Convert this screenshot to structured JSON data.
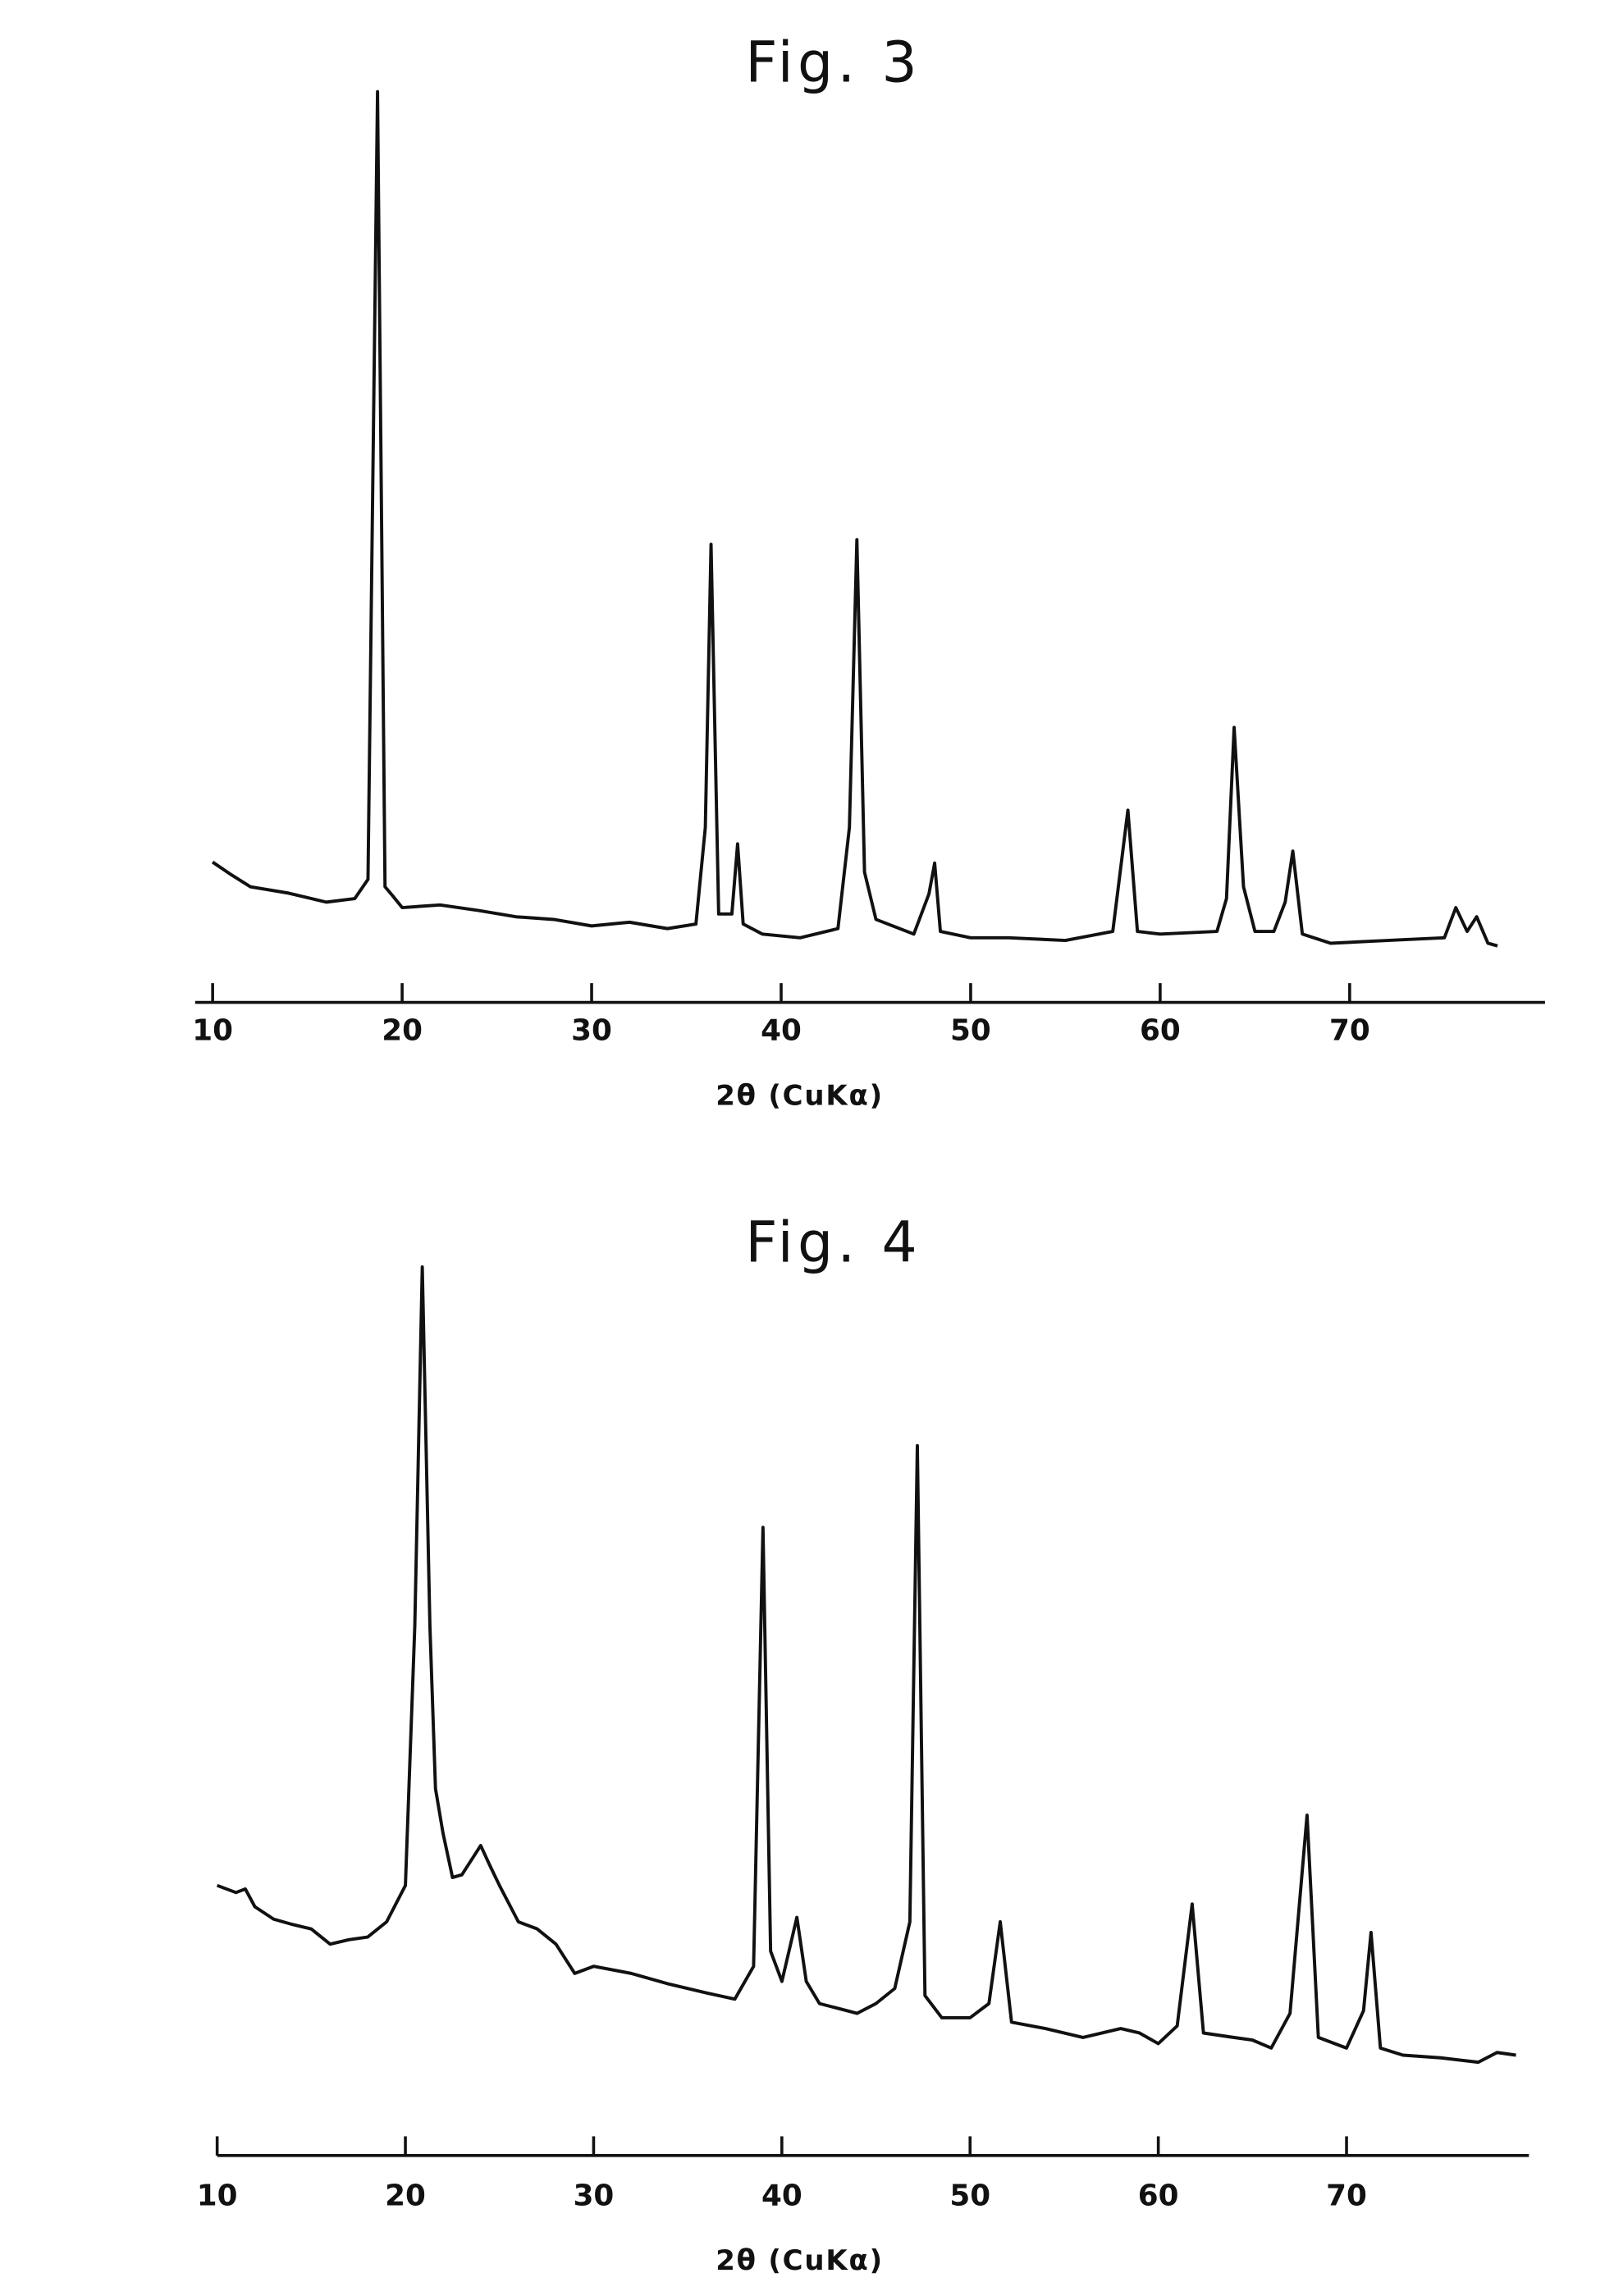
{
  "chart_data": [
    {
      "type": "line",
      "title": "Fig. 3",
      "xlabel": "2θ (CuKα)",
      "color": "#111111",
      "xlim": [
        9,
        80
      ],
      "ylim": [
        0,
        100
      ],
      "xticks": [
        10,
        20,
        30,
        40,
        50,
        60,
        70
      ],
      "x": [
        10,
        11,
        12,
        14,
        16,
        17.5,
        18.2,
        18.7,
        19.1,
        19.5,
        20,
        22,
        24,
        26,
        28,
        30,
        32,
        34,
        35.5,
        36.0,
        36.3,
        36.7,
        37.4,
        37.7,
        38.0,
        39,
        41,
        43,
        43.6,
        44.0,
        44.4,
        45,
        47,
        47.8,
        48.1,
        48.4,
        50,
        52,
        55,
        57.5,
        58.3,
        58.8,
        60,
        63,
        63.5,
        63.9,
        64.4,
        65,
        66,
        66.6,
        67.0,
        67.5,
        69,
        72,
        75,
        75.6,
        76.2,
        76.7,
        77.3,
        77.8
      ],
      "values": [
        15.4,
        14.0,
        12.7,
        12.0,
        11.0,
        11.4,
        13.5,
        100,
        12.7,
        11.7,
        10.4,
        10.7,
        10.1,
        9.4,
        9.1,
        8.4,
        8.8,
        8.1,
        8.6,
        19.2,
        50.3,
        9.7,
        9.7,
        17.4,
        8.6,
        7.5,
        7.1,
        8.1,
        19.2,
        50.8,
        14.3,
        9.1,
        7.5,
        11.9,
        15.3,
        7.8,
        7.1,
        7.1,
        6.8,
        7.8,
        21.1,
        7.8,
        7.5,
        7.8,
        11.4,
        30.2,
        12.7,
        7.8,
        7.8,
        11.0,
        16.6,
        7.5,
        6.5,
        6.8,
        7.1,
        10.4,
        7.8,
        9.4,
        6.5,
        6.2
      ]
    },
    {
      "type": "line",
      "title": "Fig. 4",
      "xlabel": "2θ (CuKα)",
      "color": "#111111",
      "xlim": [
        10,
        80
      ],
      "ylim": [
        0,
        100
      ],
      "xticks": [
        10,
        20,
        30,
        40,
        50,
        60,
        70
      ],
      "x": [
        10,
        11,
        11.5,
        12,
        13,
        14,
        15,
        16,
        17,
        18,
        19,
        20,
        20.5,
        20.9,
        21.3,
        21.6,
        22,
        22.5,
        23,
        24,
        24.5,
        25,
        26,
        27,
        28,
        29,
        30,
        32,
        34,
        36,
        37.5,
        38.5,
        39.0,
        39.4,
        40,
        40.8,
        41.3,
        42,
        44,
        45,
        46,
        46.8,
        47.2,
        47.6,
        48.5,
        50,
        51,
        51.6,
        52.2,
        54,
        56,
        58,
        59,
        60,
        61,
        61.8,
        62.4,
        64,
        65,
        66,
        67,
        67.9,
        68.5,
        70,
        70.9,
        71.3,
        71.8,
        73,
        75,
        77,
        78,
        79
      ],
      "values": [
        30.4,
        29.6,
        30,
        28,
        26.6,
        26,
        25.5,
        23.8,
        24.3,
        24.6,
        26.3,
        30.4,
        59.6,
        100,
        59.6,
        41.3,
        36.3,
        31.3,
        31.6,
        34.9,
        32.6,
        30.4,
        26.3,
        25.5,
        23.8,
        20.5,
        21.3,
        20.5,
        19.3,
        18.3,
        17.6,
        21.3,
        70.7,
        23,
        19.6,
        26.8,
        19.6,
        17.1,
        16,
        17.1,
        18.8,
        26.3,
        79.9,
        18,
        15.5,
        15.5,
        17.1,
        26.3,
        15,
        14.3,
        13.3,
        14.3,
        13.8,
        12.6,
        14.6,
        28.3,
        13.8,
        13.3,
        13,
        12.1,
        16,
        38.3,
        13.3,
        12.1,
        16.3,
        25.1,
        12.1,
        11.3,
        11,
        10.5,
        11.6,
        11.3
      ]
    }
  ]
}
